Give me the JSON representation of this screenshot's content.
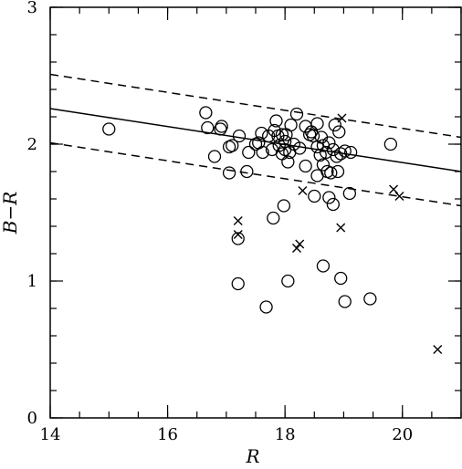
{
  "chart_data": {
    "type": "scatter",
    "xlabel": "R",
    "ylabel": "B−R",
    "xlim": [
      14,
      21
    ],
    "ylim": [
      0,
      3
    ],
    "x_major_ticks": [
      14,
      16,
      18,
      20
    ],
    "x_tick_labels": [
      "14",
      "16",
      "18",
      "20"
    ],
    "y_major_ticks": [
      0,
      1,
      2,
      3
    ],
    "y_tick_labels": [
      "0",
      "1",
      "2",
      "3"
    ],
    "x_minor_step": 0.5,
    "y_minor_step": 0.2,
    "grid": false,
    "lines": [
      {
        "style": "solid",
        "x": [
          14,
          21
        ],
        "y": [
          2.26,
          1.8
        ]
      },
      {
        "style": "dashed",
        "x": [
          14,
          21
        ],
        "y": [
          2.51,
          2.05
        ]
      },
      {
        "style": "dashed",
        "x": [
          14,
          21
        ],
        "y": [
          2.01,
          1.55
        ]
      }
    ],
    "series": [
      {
        "marker": "circle",
        "points": [
          [
            15.0,
            2.11
          ],
          [
            16.65,
            2.23
          ],
          [
            16.68,
            2.12
          ],
          [
            16.8,
            1.91
          ],
          [
            16.9,
            2.11
          ],
          [
            16.92,
            2.13
          ],
          [
            17.05,
            1.79
          ],
          [
            17.05,
            1.98
          ],
          [
            17.1,
            1.99
          ],
          [
            17.22,
            2.06
          ],
          [
            17.35,
            1.8
          ],
          [
            17.38,
            1.94
          ],
          [
            17.5,
            2.0
          ],
          [
            17.55,
            2.01
          ],
          [
            17.6,
            2.08
          ],
          [
            17.62,
            1.94
          ],
          [
            17.72,
            2.06
          ],
          [
            17.78,
            1.96
          ],
          [
            17.82,
            2.1
          ],
          [
            17.85,
            2.17
          ],
          [
            17.88,
            2.06
          ],
          [
            17.9,
            1.99
          ],
          [
            17.95,
            2.07
          ],
          [
            17.95,
            1.93
          ],
          [
            18.0,
            2.02
          ],
          [
            18.0,
            1.96
          ],
          [
            18.02,
            2.07
          ],
          [
            18.05,
            1.87
          ],
          [
            18.08,
            1.94
          ],
          [
            18.1,
            2.14
          ],
          [
            18.15,
            2.0
          ],
          [
            18.2,
            2.22
          ],
          [
            18.25,
            1.97
          ],
          [
            18.35,
            2.13
          ],
          [
            18.35,
            1.84
          ],
          [
            18.42,
            2.07
          ],
          [
            18.45,
            2.09
          ],
          [
            18.48,
            2.06
          ],
          [
            18.55,
            1.98
          ],
          [
            18.55,
            2.15
          ],
          [
            18.55,
            1.77
          ],
          [
            18.6,
            1.92
          ],
          [
            18.62,
            2.05
          ],
          [
            18.65,
            1.85
          ],
          [
            18.65,
            1.99
          ],
          [
            18.7,
            1.94
          ],
          [
            18.72,
            1.8
          ],
          [
            18.75,
            2.01
          ],
          [
            18.78,
            1.79
          ],
          [
            18.82,
            1.96
          ],
          [
            18.85,
            2.14
          ],
          [
            18.88,
            1.91
          ],
          [
            18.9,
            1.8
          ],
          [
            18.92,
            2.09
          ],
          [
            18.95,
            1.93
          ],
          [
            19.02,
            1.95
          ],
          [
            19.1,
            1.64
          ],
          [
            19.12,
            1.94
          ],
          [
            19.8,
            2.0
          ],
          [
            18.75,
            1.61
          ],
          [
            18.82,
            1.56
          ],
          [
            18.5,
            1.62
          ],
          [
            17.98,
            1.55
          ],
          [
            17.8,
            1.46
          ],
          [
            17.2,
            1.31
          ],
          [
            17.2,
            0.98
          ],
          [
            17.68,
            0.81
          ],
          [
            18.05,
            1.0
          ],
          [
            18.65,
            1.11
          ],
          [
            18.95,
            1.02
          ],
          [
            19.02,
            0.85
          ],
          [
            19.45,
            0.87
          ]
        ]
      },
      {
        "marker": "cross",
        "points": [
          [
            18.97,
            2.19
          ],
          [
            18.3,
            1.66
          ],
          [
            17.2,
            1.44
          ],
          [
            17.2,
            1.34
          ],
          [
            18.2,
            1.24
          ],
          [
            18.25,
            1.27
          ],
          [
            18.95,
            1.39
          ],
          [
            19.85,
            1.67
          ],
          [
            19.95,
            1.62
          ],
          [
            20.6,
            0.5
          ]
        ]
      }
    ]
  }
}
